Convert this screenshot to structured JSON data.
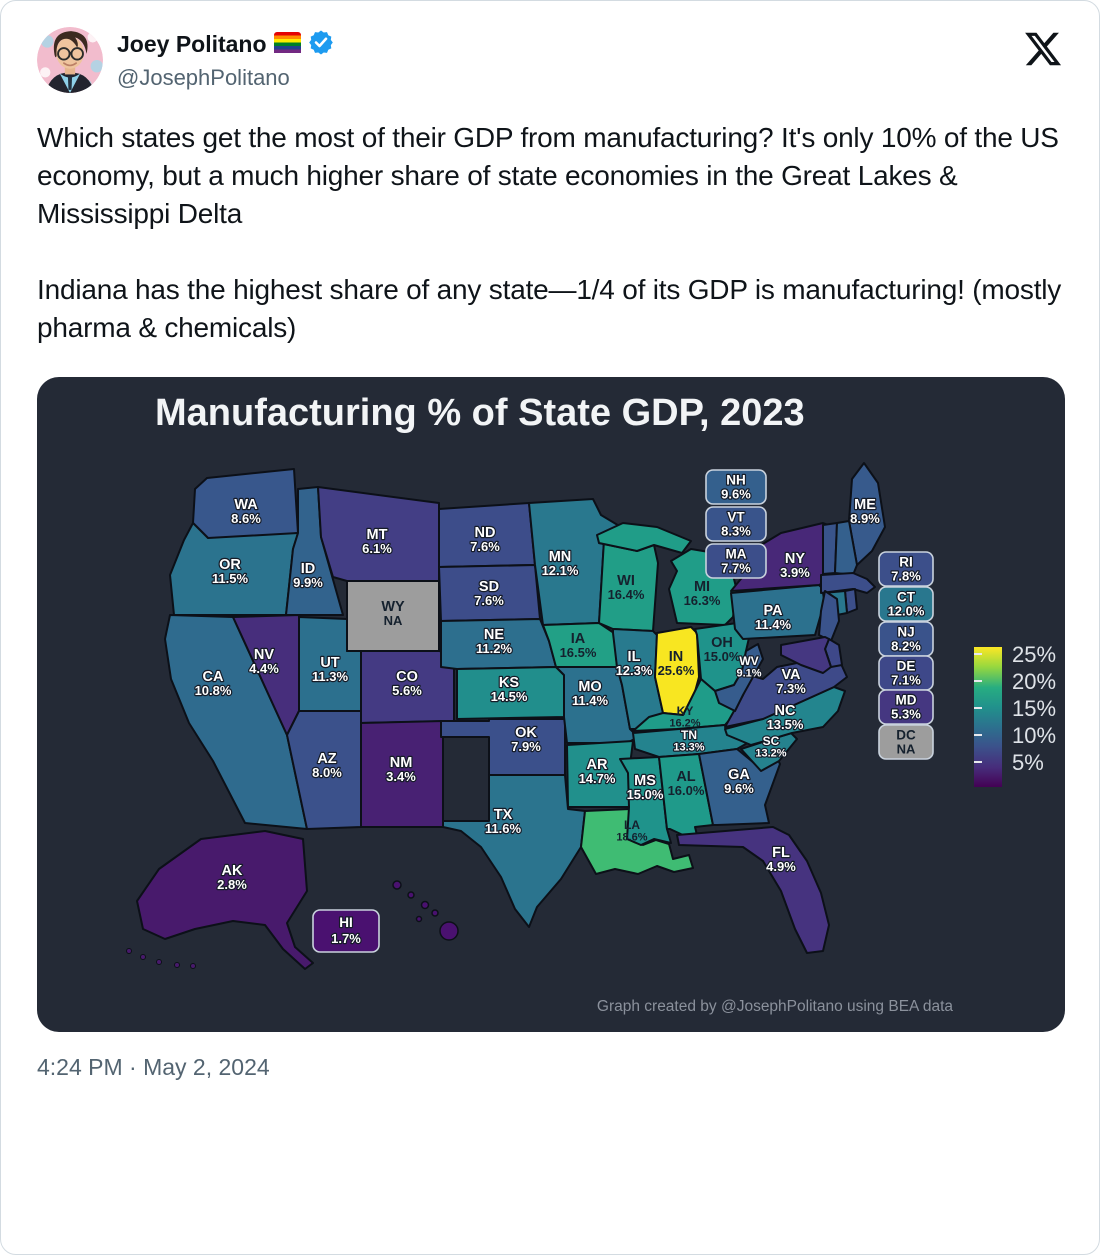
{
  "tweet": {
    "author_name": "Joey Politano",
    "author_handle": "@JosephPolitano",
    "badges": [
      "pride-flag",
      "verified"
    ],
    "body_paragraphs": [
      "Which states get the most of their GDP from manufacturing? It's only 10% of the US economy, but a much higher share of state economies in the Great Lakes & Mississippi Delta",
      "Indiana has the highest share of any state—1/4 of its GDP is manufacturing! (mostly pharma & chemicals)"
    ],
    "timestamp": "4:24 PM · May 2, 2024"
  },
  "chart_data": {
    "type": "choropleth",
    "title": "Manufacturing % of State GDP, 2023",
    "attribution": "Graph created by @JosephPolitano using BEA data",
    "unit": "percent of state GDP",
    "colormap": "viridis",
    "value_range": [
      1,
      26.3
    ],
    "legend": {
      "position": "right",
      "ticks": [
        "25%",
        "20%",
        "15%",
        "10%",
        "5%"
      ]
    },
    "na_color": "#9d9d9d",
    "boxed_labels": [
      "NH",
      "VT",
      "MA",
      "RI",
      "CT",
      "NJ",
      "DE",
      "MD",
      "DC",
      "HI"
    ],
    "states": [
      {
        "abbr": "WA",
        "value": 8.6,
        "display": "8.6%",
        "color": "#38578c"
      },
      {
        "abbr": "OR",
        "value": 11.5,
        "display": "11.5%",
        "color": "#2b738e"
      },
      {
        "abbr": "CA",
        "value": 10.8,
        "display": "10.8%",
        "color": "#2f6b8e"
      },
      {
        "abbr": "ID",
        "value": 9.9,
        "display": "9.9%",
        "color": "#32638d"
      },
      {
        "abbr": "NV",
        "value": 4.4,
        "display": "4.4%",
        "color": "#472e7c"
      },
      {
        "abbr": "UT",
        "value": 11.3,
        "display": "11.3%",
        "color": "#2c708e"
      },
      {
        "abbr": "AZ",
        "value": 8.0,
        "display": "8.0%",
        "color": "#3b518b"
      },
      {
        "abbr": "MT",
        "value": 6.1,
        "display": "6.1%",
        "color": "#433e85"
      },
      {
        "abbr": "WY",
        "value": null,
        "display": "NA",
        "color": "#9d9d9d",
        "text_dark": true
      },
      {
        "abbr": "CO",
        "value": 5.6,
        "display": "5.6%",
        "color": "#443a83"
      },
      {
        "abbr": "NM",
        "value": 3.4,
        "display": "3.4%",
        "color": "#482173"
      },
      {
        "abbr": "ND",
        "value": 7.6,
        "display": "7.6%",
        "color": "#3d4d8a"
      },
      {
        "abbr": "SD",
        "value": 7.6,
        "display": "7.6%",
        "color": "#3d4d8a"
      },
      {
        "abbr": "NE",
        "value": 11.2,
        "display": "11.2%",
        "color": "#2d6f8e"
      },
      {
        "abbr": "KS",
        "value": 14.5,
        "display": "14.5%",
        "color": "#218e8c"
      },
      {
        "abbr": "OK",
        "value": 7.9,
        "display": "7.9%",
        "color": "#3b508b"
      },
      {
        "abbr": "TX",
        "value": 11.6,
        "display": "11.6%",
        "color": "#2b748e"
      },
      {
        "abbr": "MN",
        "value": 12.1,
        "display": "12.1%",
        "color": "#29788e"
      },
      {
        "abbr": "IA",
        "value": 16.5,
        "display": "16.5%",
        "color": "#22a086",
        "text_dark": true
      },
      {
        "abbr": "MO",
        "value": 11.4,
        "display": "11.4%",
        "color": "#2c718e"
      },
      {
        "abbr": "AR",
        "value": 14.7,
        "display": "14.7%",
        "color": "#21908c"
      },
      {
        "abbr": "LA",
        "value": 18.6,
        "display": "18.6%",
        "color": "#3fbc73",
        "text_dark": true
      },
      {
        "abbr": "WI",
        "value": 16.4,
        "display": "16.4%",
        "color": "#219e87",
        "text_dark": true
      },
      {
        "abbr": "IL",
        "value": 12.3,
        "display": "12.3%",
        "color": "#287a8e"
      },
      {
        "abbr": "IN",
        "value": 25.6,
        "display": "25.6%",
        "color": "#f8e621",
        "text_dark": true
      },
      {
        "abbr": "MI",
        "value": 16.3,
        "display": "16.3%",
        "color": "#209d88",
        "text_dark": true
      },
      {
        "abbr": "OH",
        "value": 15.0,
        "display": "15.0%",
        "color": "#1f938b",
        "text_dark": true
      },
      {
        "abbr": "KY",
        "value": 16.2,
        "display": "16.2%",
        "color": "#1f9c89",
        "text_dark": true
      },
      {
        "abbr": "TN",
        "value": 13.3,
        "display": "13.3%",
        "color": "#24838e"
      },
      {
        "abbr": "MS",
        "value": 15.0,
        "display": "15.0%",
        "color": "#1f938b"
      },
      {
        "abbr": "AL",
        "value": 16.0,
        "display": "16.0%",
        "color": "#1f9a8a",
        "text_dark": true
      },
      {
        "abbr": "GA",
        "value": 9.6,
        "display": "9.6%",
        "color": "#34608d"
      },
      {
        "abbr": "FL",
        "value": 4.9,
        "display": "4.9%",
        "color": "#46337f"
      },
      {
        "abbr": "SC",
        "value": 13.2,
        "display": "13.2%",
        "color": "#25828e"
      },
      {
        "abbr": "NC",
        "value": 13.5,
        "display": "13.5%",
        "color": "#23858e"
      },
      {
        "abbr": "VA",
        "value": 7.3,
        "display": "7.3%",
        "color": "#3e4a89"
      },
      {
        "abbr": "WV",
        "value": 9.1,
        "display": "9.1%",
        "color": "#365c8d"
      },
      {
        "abbr": "PA",
        "value": 11.4,
        "display": "11.4%",
        "color": "#2c718e"
      },
      {
        "abbr": "NY",
        "value": 3.9,
        "display": "3.9%",
        "color": "#482878"
      },
      {
        "abbr": "ME",
        "value": 8.9,
        "display": "8.9%",
        "color": "#375a8c"
      },
      {
        "abbr": "VT",
        "value": 8.3,
        "display": "8.3%",
        "color": "#39548b"
      },
      {
        "abbr": "NH",
        "value": 9.6,
        "display": "9.6%",
        "color": "#34608d"
      },
      {
        "abbr": "MA",
        "value": 7.7,
        "display": "7.7%",
        "color": "#3c4e8a"
      },
      {
        "abbr": "RI",
        "value": 7.8,
        "display": "7.8%",
        "color": "#3c4f8a"
      },
      {
        "abbr": "CT",
        "value": 12.0,
        "display": "12.0%",
        "color": "#29778e"
      },
      {
        "abbr": "NJ",
        "value": 8.2,
        "display": "8.2%",
        "color": "#3a538b"
      },
      {
        "abbr": "DE",
        "value": 7.1,
        "display": "7.1%",
        "color": "#3e4889"
      },
      {
        "abbr": "MD",
        "value": 5.3,
        "display": "5.3%",
        "color": "#453781"
      },
      {
        "abbr": "DC",
        "value": null,
        "display": "NA",
        "color": "#9d9d9d",
        "text_dark": true
      },
      {
        "abbr": "AK",
        "value": 2.8,
        "display": "2.8%",
        "color": "#481a6c"
      },
      {
        "abbr": "HI",
        "value": 1.7,
        "display": "1.7%",
        "color": "#4a1170"
      }
    ]
  }
}
